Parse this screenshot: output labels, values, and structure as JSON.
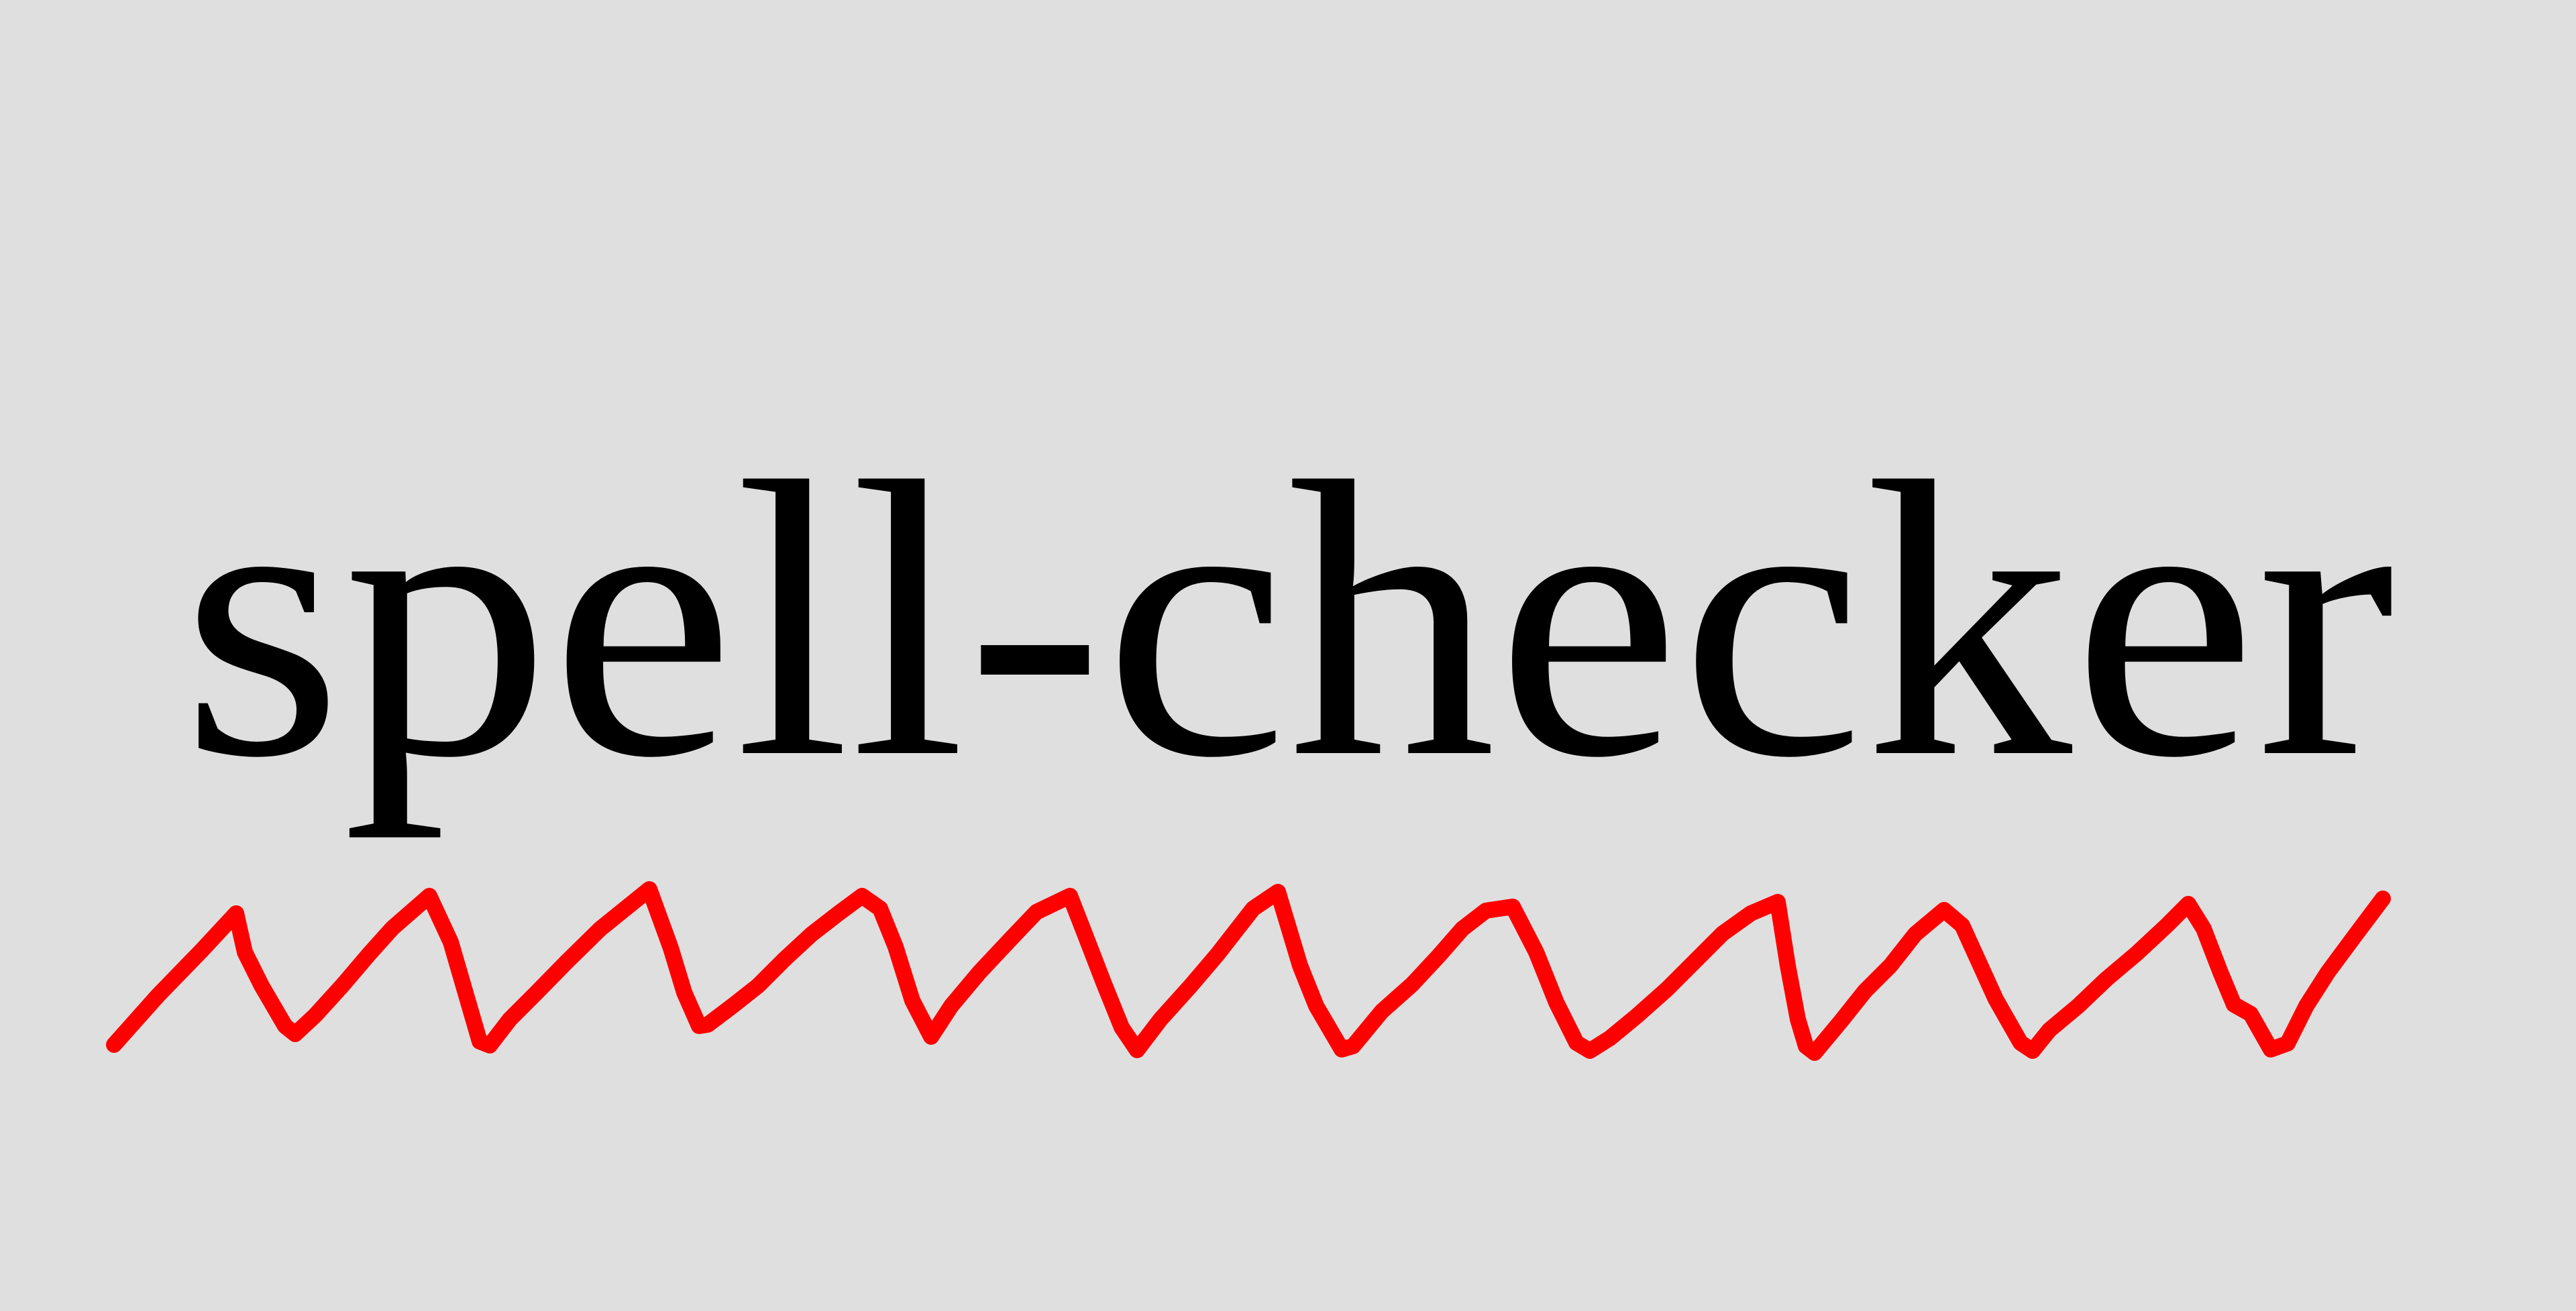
{
  "word": {
    "text": "spell-checker"
  },
  "colors": {
    "background": "#dfdfdf",
    "text": "#000000",
    "squiggle": "#ff0000"
  },
  "icons": {
    "underline": "red-squiggly-underline"
  }
}
